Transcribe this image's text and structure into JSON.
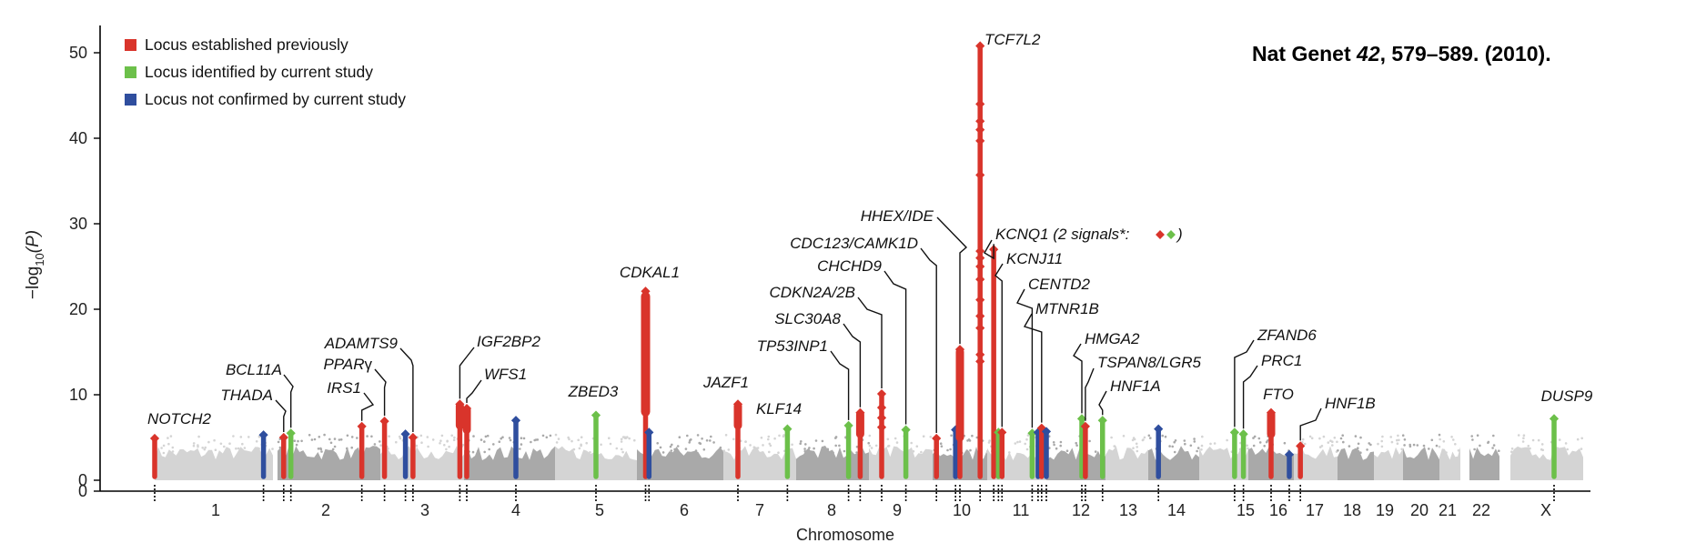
{
  "citation": {
    "prefix": "Nat Genet ",
    "volume": "42",
    "suffix": ", 579–589. (2010)."
  },
  "chart_data": {
    "type": "scatter",
    "subtype": "manhattan",
    "xlabel": "Chromosome",
    "ylabel_main": "−log",
    "ylabel_sub": "10",
    "ylabel_tail": "(P)",
    "ylim": [
      0,
      53
    ],
    "y_ticks": [
      0,
      10,
      20,
      30,
      40,
      50
    ],
    "chromosomes": [
      "1",
      "2",
      "3",
      "4",
      "5",
      "6",
      "7",
      "8",
      "9",
      "10",
      "11",
      "12",
      "13",
      "14",
      "15",
      "16",
      "17",
      "18",
      "19",
      "20",
      "21",
      "22",
      "X"
    ],
    "colors": {
      "established": "#d9342b",
      "identified": "#6cc04a",
      "not_confirmed": "#2f4e9e",
      "background_light": "#d4d4d4",
      "background_dark": "#a9a9a9"
    },
    "legend": [
      {
        "key": "established",
        "label": "Locus established previously"
      },
      {
        "key": "identified",
        "label": "Locus identified by current study"
      },
      {
        "key": "not_confirmed",
        "label": "Locus not confirmed by current study"
      }
    ],
    "loci": [
      {
        "gene": "NOTCH2",
        "chr": "1",
        "pos": 0.0,
        "p": 4.9,
        "cat": "established"
      },
      {
        "gene": "",
        "chr": "1",
        "pos": 0.92,
        "p": 5.3,
        "cat": "not_confirmed"
      },
      {
        "gene": "THADA",
        "chr": "2",
        "pos": 0.06,
        "p": 5.0,
        "cat": "established"
      },
      {
        "gene": "BCL11A",
        "chr": "2",
        "pos": 0.13,
        "p": 5.5,
        "cat": "identified"
      },
      {
        "gene": "IRS1",
        "chr": "2",
        "pos": 0.82,
        "p": 6.3,
        "cat": "established"
      },
      {
        "gene": "PPARγ",
        "chr": "3",
        "pos": 0.05,
        "p": 6.9,
        "cat": "established"
      },
      {
        "gene": "",
        "chr": "3",
        "pos": 0.3,
        "p": 5.4,
        "cat": "not_confirmed"
      },
      {
        "gene": "ADAMTS9",
        "chr": "3",
        "pos": 0.39,
        "p": 5.0,
        "cat": "established"
      },
      {
        "gene": "IGF2BP2",
        "chr": "3",
        "pos": 0.95,
        "p": 8.9,
        "cat": "established"
      },
      {
        "gene": "WFS1",
        "chr": "4",
        "pos": 0.03,
        "p": 8.4,
        "cat": "established"
      },
      {
        "gene": "",
        "chr": "4",
        "pos": 0.57,
        "p": 7.0,
        "cat": "not_confirmed"
      },
      {
        "gene": "ZBED3",
        "chr": "5",
        "pos": 0.5,
        "p": 7.6,
        "cat": "identified"
      },
      {
        "gene": "CDKAL1",
        "chr": "6",
        "pos": 0.1,
        "p": 22.1,
        "cat": "established"
      },
      {
        "gene": "",
        "chr": "6",
        "pos": 0.14,
        "p": 5.6,
        "cat": "not_confirmed"
      },
      {
        "gene": "JAZF1",
        "chr": "7",
        "pos": 0.2,
        "p": 8.9,
        "cat": "established"
      },
      {
        "gene": "KLF14",
        "chr": "7",
        "pos": 0.88,
        "p": 6.0,
        "cat": "identified"
      },
      {
        "gene": "TP53INP1",
        "chr": "8",
        "pos": 0.72,
        "p": 6.4,
        "cat": "identified"
      },
      {
        "gene": "SLC30A8",
        "chr": "8",
        "pos": 0.88,
        "p": 7.9,
        "cat": "established"
      },
      {
        "gene": "CDKN2A/2B",
        "chr": "9",
        "pos": 0.2,
        "p": 10.1,
        "cat": "established"
      },
      {
        "gene": "CHCHD9",
        "chr": "9",
        "pos": 0.58,
        "p": 5.9,
        "cat": "identified"
      },
      {
        "gene": "CDC123/CAMK1D",
        "chr": "10",
        "pos": 0.07,
        "p": 4.9,
        "cat": "established"
      },
      {
        "gene": "",
        "chr": "10",
        "pos": 0.42,
        "p": 5.9,
        "cat": "not_confirmed"
      },
      {
        "gene": "HHEX/IDE",
        "chr": "10",
        "pos": 0.5,
        "p": 15.3,
        "cat": "established"
      },
      {
        "gene": "TCF7L2",
        "chr": "10",
        "pos": 0.87,
        "p": 50.8,
        "cat": "established"
      },
      {
        "gene": "KCNQ1 (2 signals*:",
        "chr": "11",
        "pos": 0.11,
        "p": 27.0,
        "cat": "established"
      },
      {
        "gene": "",
        "chr": "11",
        "pos": 0.19,
        "p": 5.6,
        "cat": "identified"
      },
      {
        "gene": "KCNJ11",
        "chr": "11",
        "pos": 0.25,
        "p": 5.6,
        "cat": "established"
      },
      {
        "gene": "CENTD2",
        "chr": "11",
        "pos": 0.76,
        "p": 5.5,
        "cat": "identified"
      },
      {
        "gene": "",
        "chr": "11",
        "pos": 0.86,
        "p": 5.6,
        "cat": "not_confirmed"
      },
      {
        "gene": "MTNR1B",
        "chr": "11",
        "pos": 0.92,
        "p": 6.1,
        "cat": "established"
      },
      {
        "gene": "",
        "chr": "12",
        "pos": 0.0,
        "p": 5.7,
        "cat": "not_confirmed"
      },
      {
        "gene": "HMGA2",
        "chr": "12",
        "pos": 0.6,
        "p": 7.2,
        "cat": "identified"
      },
      {
        "gene": "TSPAN8/LGR5",
        "chr": "12",
        "pos": 0.66,
        "p": 6.3,
        "cat": "established"
      },
      {
        "gene": "HNF1A",
        "chr": "12",
        "pos": 0.95,
        "p": 7.0,
        "cat": "identified"
      },
      {
        "gene": "",
        "chr": "14",
        "pos": 0.2,
        "p": 6.0,
        "cat": "not_confirmed"
      },
      {
        "gene": "ZFAND6",
        "chr": "15",
        "pos": 0.72,
        "p": 5.6,
        "cat": "identified"
      },
      {
        "gene": "PRC1",
        "chr": "15",
        "pos": 0.9,
        "p": 5.4,
        "cat": "identified"
      },
      {
        "gene": "FTO",
        "chr": "16",
        "pos": 0.5,
        "p": 7.9,
        "cat": "established"
      },
      {
        "gene": "",
        "chr": "16",
        "pos": 0.9,
        "p": 3.0,
        "cat": "not_confirmed"
      },
      {
        "gene": "HNF1B",
        "chr": "17",
        "pos": 0.15,
        "p": 4.0,
        "cat": "established"
      },
      {
        "gene": "DUSP9",
        "chr": "X",
        "pos": 0.6,
        "p": 7.2,
        "cat": "identified"
      }
    ],
    "annotations": [
      {
        "text": ")",
        "type": "legend-close"
      }
    ]
  }
}
